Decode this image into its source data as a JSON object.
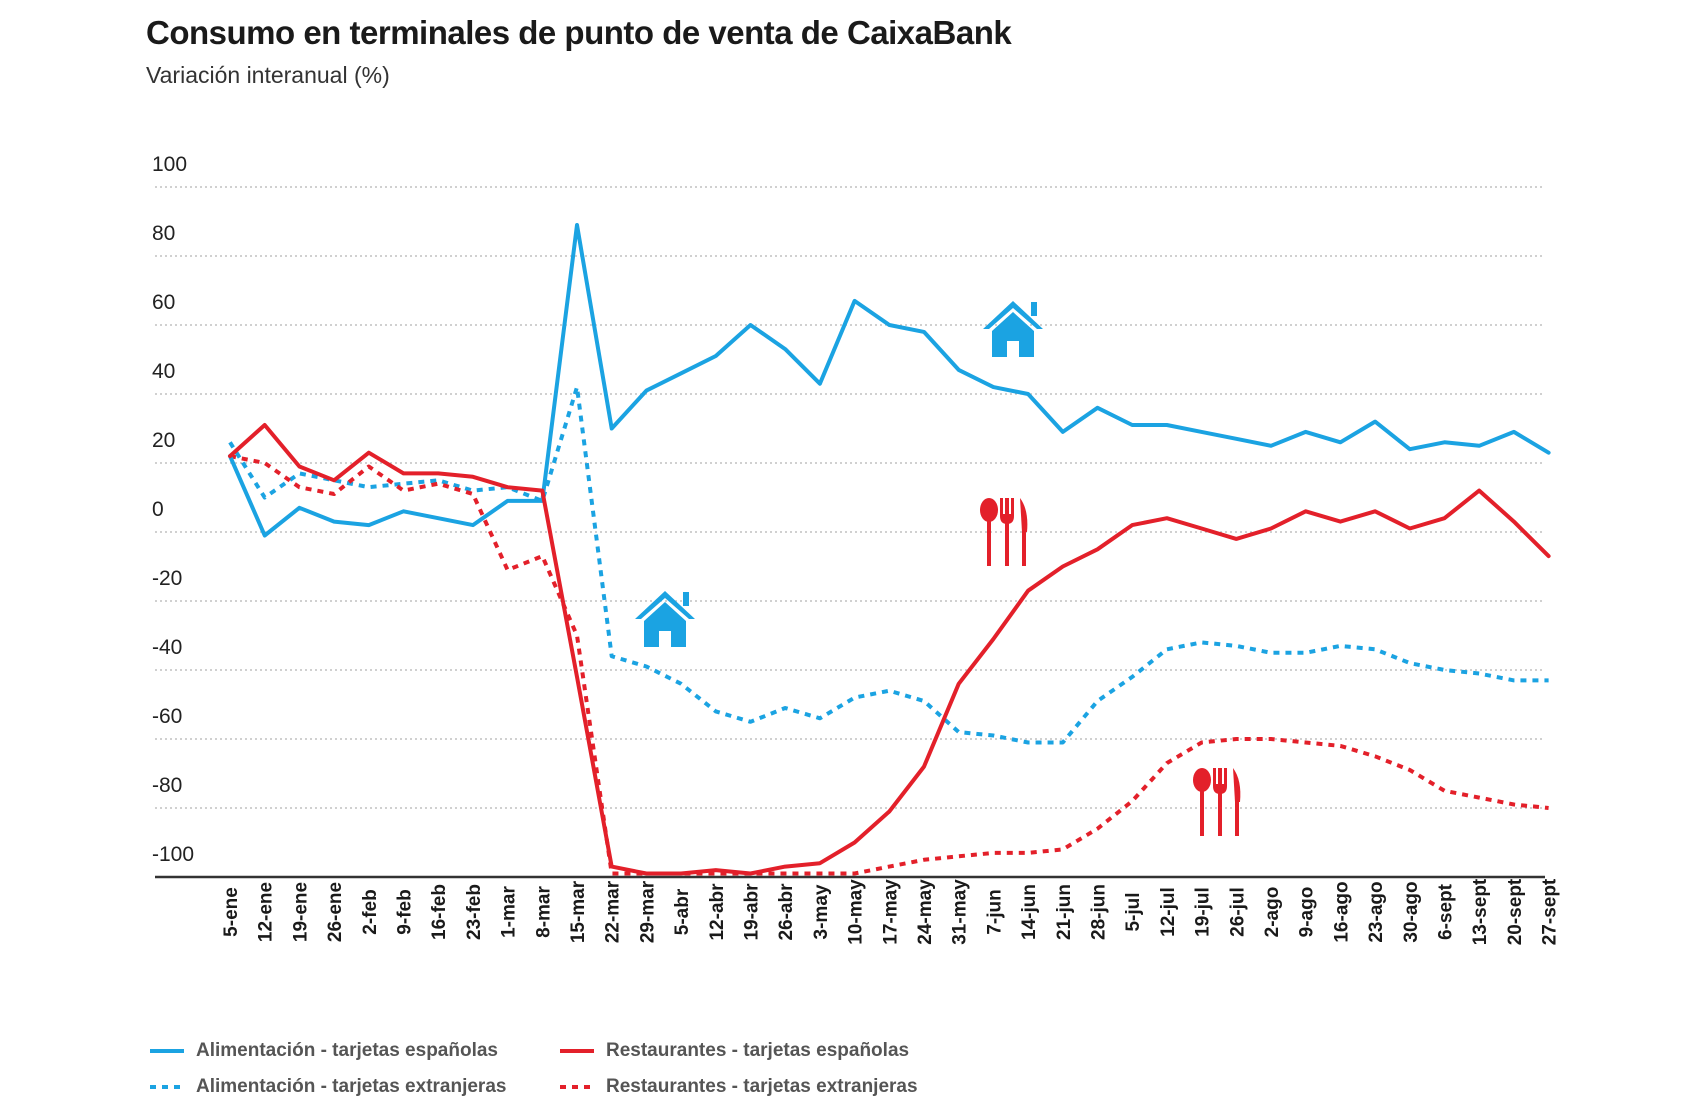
{
  "title": "Consumo en terminales de punto de venta de CaixaBank",
  "subtitle": "Variación interanual (%)",
  "colors": {
    "blue": "#1ba3e2",
    "red": "#e3202a",
    "grid": "#b5b5b5",
    "axis": "#333333"
  },
  "icons": {
    "home": "home-icon",
    "restaurant": "cutlery-icon"
  },
  "chart_data": {
    "type": "line",
    "title": "Consumo en terminales de punto de venta de CaixaBank",
    "ylabel": "Variación interanual (%)",
    "ylim": [
      -100,
      100
    ],
    "yticks": [
      100,
      80,
      60,
      40,
      20,
      0,
      -20,
      -40,
      -60,
      -80,
      -100
    ],
    "grid": true,
    "categories": [
      "5-ene",
      "12-ene",
      "19-ene",
      "26-ene",
      "2-feb",
      "9-feb",
      "16-feb",
      "23-feb",
      "1-mar",
      "8-mar",
      "15-mar",
      "22-mar",
      "29-mar",
      "5-abr",
      "12-abr",
      "19-abr",
      "26-abr",
      "3-may",
      "10-may",
      "17-may",
      "24-may",
      "31-may",
      "7-jun",
      "14-jun",
      "21-jun",
      "28-jun",
      "5-jul",
      "12-jul",
      "19-jul",
      "26-jul",
      "2-ago",
      "9-ago",
      "16-ago",
      "23-ago",
      "30-ago",
      "6-sept",
      "13-sept",
      "20-sept",
      "27-sept"
    ],
    "series": [
      {
        "name": "Alimentación - tarjetas españolas",
        "color": "#1ba3e2",
        "style": "solid",
        "values": [
          22,
          -1,
          7,
          3,
          2,
          6,
          4,
          2,
          9,
          9,
          89,
          30,
          41,
          46,
          51,
          60,
          53,
          43,
          67,
          60,
          58,
          47,
          42,
          40,
          29,
          36,
          31,
          31,
          29,
          27,
          25,
          29,
          26,
          32,
          24,
          26,
          25,
          29,
          23
        ]
      },
      {
        "name": "Restaurantes - tarjetas españolas",
        "color": "#e3202a",
        "style": "solid",
        "values": [
          22,
          31,
          19,
          15,
          23,
          17,
          17,
          16,
          13,
          12,
          -42,
          -97,
          -99,
          -99,
          -98,
          -99,
          -97,
          -96,
          -90,
          -81,
          -68,
          -44,
          -31,
          -17,
          -10,
          -5,
          2,
          4,
          1,
          -2,
          1,
          6,
          3,
          6,
          1,
          4,
          12,
          3,
          -7
        ]
      },
      {
        "name": "Alimentación - tarjetas extranjeras",
        "color": "#1ba3e2",
        "style": "dotted",
        "values": [
          26,
          10,
          17,
          15,
          13,
          14,
          15,
          12,
          13,
          9,
          42,
          -36,
          -39,
          -44,
          -52,
          -55,
          -51,
          -54,
          -48,
          -46,
          -49,
          -58,
          -59,
          -61,
          -61,
          -49,
          -42,
          -34,
          -32,
          -33,
          -35,
          -35,
          -33,
          -34,
          -38,
          -40,
          -41,
          -43,
          -43
        ]
      },
      {
        "name": "Restaurantes - tarjetas extranjeras",
        "color": "#e3202a",
        "style": "dotted",
        "values": [
          22,
          20,
          13,
          11,
          19,
          12,
          14,
          11,
          -11,
          -7,
          -30,
          -99,
          -99,
          -99,
          -99,
          -99,
          -99,
          -99,
          -99,
          -97,
          -95,
          -94,
          -93,
          -93,
          -92,
          -86,
          -78,
          -67,
          -61,
          -60,
          -60,
          -61,
          -62,
          -65,
          -69,
          -75,
          -77,
          -79,
          -80
        ]
      }
    ],
    "annotations": [
      {
        "icon": "home-icon",
        "series": 0,
        "at": "7-jun",
        "value": 60
      },
      {
        "icon": "cutlery-icon",
        "series": 1,
        "at": "7-jun",
        "value": 0
      },
      {
        "icon": "home-icon",
        "series": 2,
        "at": "29-mar",
        "value": -32
      },
      {
        "icon": "cutlery-icon",
        "series": 3,
        "at": "19-jul",
        "value": -79
      }
    ],
    "legend_position": "bottom-left"
  }
}
